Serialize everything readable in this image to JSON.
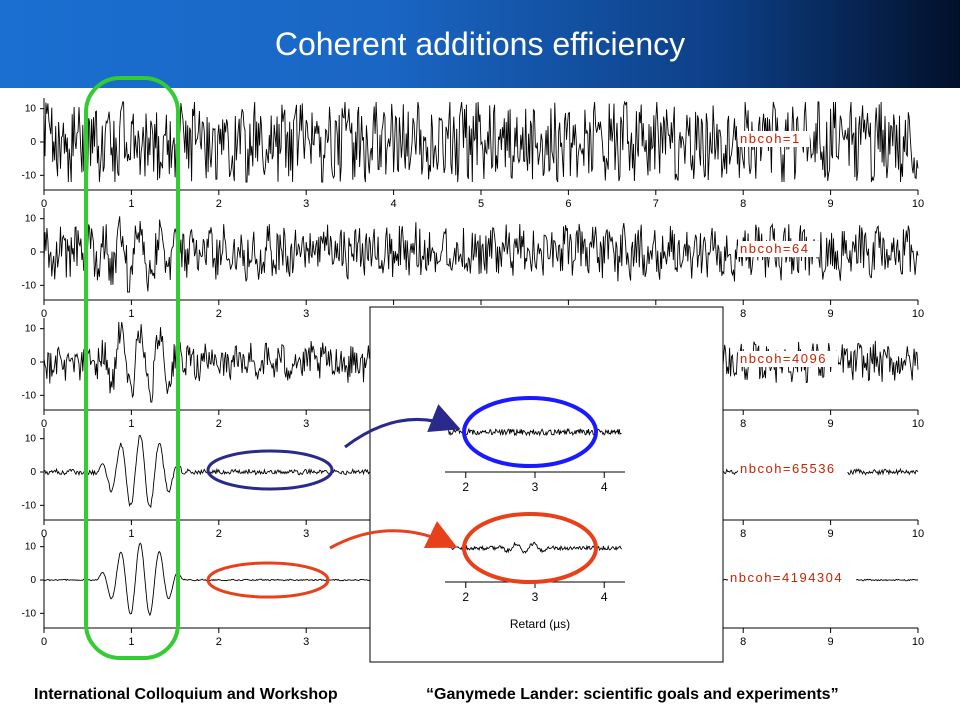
{
  "slide": {
    "title": "Coherent additions efficiency",
    "footer_left": "International Colloquium and Workshop",
    "footer_right": "“Ganymede Lander: scientific goals and experiments”"
  },
  "colors": {
    "title_bar_start": "#1a6fd0",
    "title_bar_end": "#02102a",
    "label_red": "#cc2200",
    "green_ellipse": "#33cc33",
    "blue": "#1a1aff",
    "red": "#e8401a",
    "navy_ellipse": "#2a2a8a"
  },
  "chart_data": [
    {
      "type": "line",
      "panel": 1,
      "label": "nbcoh=1",
      "x_ticks": [
        "0",
        "1",
        "2",
        "3",
        "4",
        "5",
        "6",
        "7",
        "8",
        "9",
        "10"
      ],
      "y_ticks": [
        "10",
        "0",
        "-10"
      ],
      "xlim": [
        0,
        10
      ],
      "ylim": [
        -12,
        12
      ],
      "signal": {
        "noise_amplitude": 11,
        "pulse_amplitude": 0,
        "pulse_start": 0.6,
        "pulse_end": 1.6
      }
    },
    {
      "type": "line",
      "panel": 2,
      "label": "nbcoh=64",
      "x_ticks": [
        "0",
        "1",
        "2",
        "3",
        "4",
        "5",
        "6",
        "7",
        "8",
        "9",
        "10"
      ],
      "y_ticks": [
        "10",
        "0",
        "-10"
      ],
      "xlim": [
        0,
        10
      ],
      "ylim": [
        -12,
        12
      ],
      "signal": {
        "noise_amplitude": 7,
        "pulse_amplitude": 9,
        "pulse_start": 0.6,
        "pulse_end": 1.6
      }
    },
    {
      "type": "line",
      "panel": 3,
      "label": "nbcoh=4096",
      "x_ticks": [
        "0",
        "1",
        "2",
        "3",
        "4",
        "5",
        "6",
        "7",
        "8",
        "9",
        "10"
      ],
      "y_ticks": [
        "10",
        "0",
        "-10"
      ],
      "xlim": [
        0,
        10
      ],
      "ylim": [
        -12,
        12
      ],
      "signal": {
        "noise_amplitude": 5,
        "pulse_amplitude": 11,
        "pulse_start": 0.6,
        "pulse_end": 1.6
      }
    },
    {
      "type": "line",
      "panel": 4,
      "label": "nbcoh=65536",
      "x_ticks": [
        "0",
        "1",
        "2",
        "3",
        "4",
        "5",
        "6",
        "7",
        "8",
        "9",
        "10"
      ],
      "y_ticks": [
        "10",
        "0",
        "-10"
      ],
      "xlim": [
        0,
        10
      ],
      "ylim": [
        -12,
        12
      ],
      "signal": {
        "noise_amplitude": 0.7,
        "pulse_amplitude": 11,
        "pulse_start": 0.6,
        "pulse_end": 1.6
      }
    },
    {
      "type": "line",
      "panel": 5,
      "label": "nbcoh=4194304",
      "x_ticks": [
        "0",
        "1",
        "2",
        "3",
        "4",
        "5",
        "6",
        "7",
        "8",
        "9",
        "10"
      ],
      "y_ticks": [
        "10",
        "0",
        "-10"
      ],
      "xlim": [
        0,
        10
      ],
      "ylim": [
        -12,
        12
      ],
      "signal": {
        "noise_amplitude": 0.2,
        "pulse_amplitude": 11,
        "pulse_start": 0.6,
        "pulse_end": 1.6
      }
    },
    {
      "type": "line",
      "panel": "inset",
      "x_ticks": [
        "2",
        "3",
        "4"
      ],
      "xlabel": "Retard (µs)",
      "xlim": [
        1.7,
        4.3
      ],
      "traces": [
        {
          "name": "upper trace",
          "signal": {
            "noise_amplitude": 3,
            "pulse_amplitude": 0
          }
        },
        {
          "name": "lower trace",
          "signal": {
            "noise_amplitude": 2,
            "pulse_amplitude": 5
          }
        }
      ]
    }
  ]
}
